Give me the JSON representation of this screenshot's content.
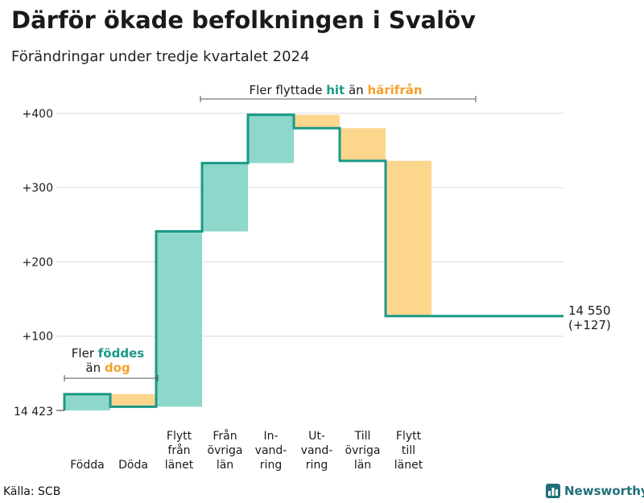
{
  "title": "Därför ökade befolkningen i Svalöv",
  "subtitle": "Förändringar under tredje kvartalet 2024",
  "source": "Källa: SCB",
  "brand": "Newsworthy",
  "colors": {
    "increase": "#8dd7cb",
    "decrease": "#fdd68e",
    "line": "#1a9988",
    "grid": "#d9d9d9",
    "text": "#1a1a1a"
  },
  "annotations": {
    "born": {
      "line1": "Fler",
      "line1_hl": "föddes",
      "line2": "än",
      "line2_hl": "dog"
    },
    "moved": {
      "pre": "Fler flyttade",
      "hl1": "hit",
      "mid": "än",
      "hl2": "härifrån"
    }
  },
  "end_label": {
    "total": "14 550",
    "change": "(+127)"
  },
  "chart_data": {
    "type": "waterfall",
    "base_label": "14 423",
    "base_value": 14423,
    "yticks": [
      {
        "value": 100,
        "label": "+100"
      },
      {
        "value": 200,
        "label": "+200"
      },
      {
        "value": 300,
        "label": "+300"
      },
      {
        "value": 400,
        "label": "+400"
      }
    ],
    "ylim": [
      0,
      400
    ],
    "steps": [
      {
        "label": [
          "Födda"
        ],
        "value": 22
      },
      {
        "label": [
          "Döda"
        ],
        "value": -17
      },
      {
        "label": [
          "Flytt",
          "från",
          "länet"
        ],
        "value": 236
      },
      {
        "label": [
          "Från",
          "övriga",
          "län"
        ],
        "value": 92
      },
      {
        "label": [
          "In-",
          "vand-",
          "ring"
        ],
        "value": 65
      },
      {
        "label": [
          "Ut-",
          "vand-",
          "ring"
        ],
        "value": -18
      },
      {
        "label": [
          "Till",
          "övriga",
          "län"
        ],
        "value": -44
      },
      {
        "label": [
          "Flytt",
          "till",
          "länet"
        ],
        "value": -209
      }
    ],
    "total_change": 127,
    "end_value": 14550
  }
}
